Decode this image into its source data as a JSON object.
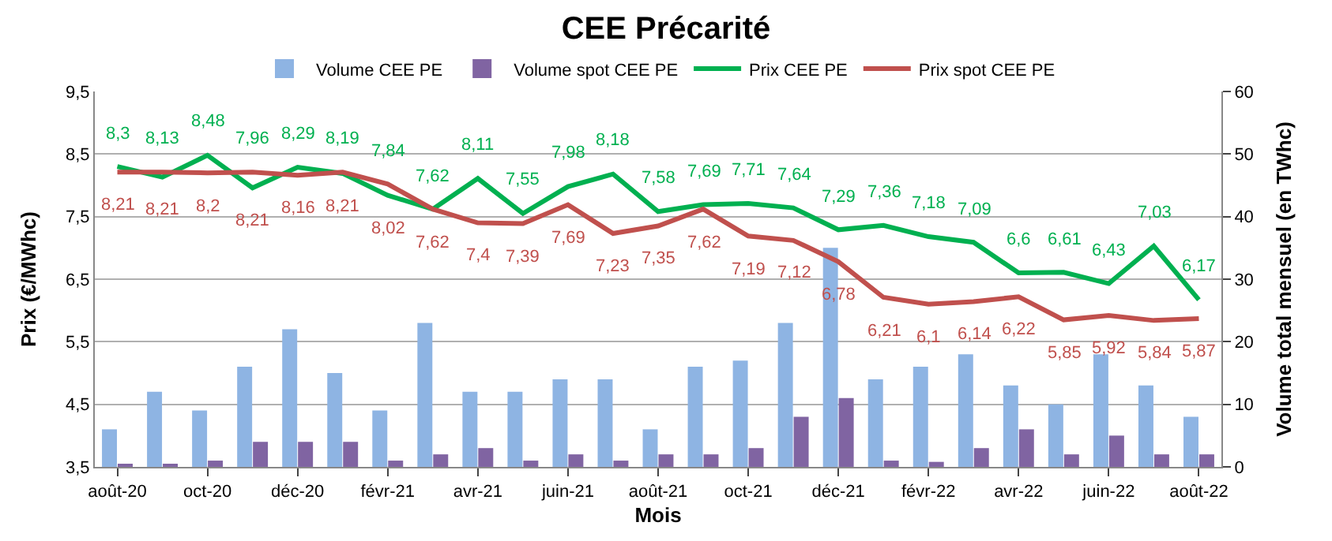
{
  "chart_data": {
    "type": "bar",
    "title": "CEE Précarité",
    "xlabel": "Mois",
    "ylabel": "Prix (€/MWhc)",
    "y2label": "Volume total mensuel (en TWhc)",
    "categories": [
      "août-20",
      null,
      "oct-20",
      null,
      "déc-20",
      null,
      "févr-21",
      null,
      "avr-21",
      null,
      "juin-21",
      null,
      "août-21",
      null,
      "oct-21",
      null,
      "déc-21",
      null,
      "févr-22",
      null,
      "avr-22",
      null,
      "juin-22",
      null,
      "août-22"
    ],
    "ylim": [
      3.5,
      9.5
    ],
    "yticks": [
      {
        "value": 3.5,
        "label": "3,5"
      },
      {
        "value": 4.5,
        "label": "4,5"
      },
      {
        "value": 5.5,
        "label": "5,5"
      },
      {
        "value": 6.5,
        "label": "6,5"
      },
      {
        "value": 7.5,
        "label": "7,5"
      },
      {
        "value": 8.5,
        "label": "8,5"
      },
      {
        "value": 9.5,
        "label": "9,5"
      }
    ],
    "y2lim": [
      0,
      60
    ],
    "y2ticks": [
      0,
      10,
      20,
      30,
      40,
      50,
      60
    ],
    "grid": "y",
    "legend": "top",
    "series": [
      {
        "name": "Volume CEE PE",
        "axis": "y2",
        "color": "#8eb4e3",
        "values": [
          6,
          12,
          9,
          16,
          22,
          15,
          9,
          23,
          12,
          12,
          14,
          14,
          6,
          16,
          17,
          23,
          35,
          14,
          16,
          18,
          13,
          10,
          18,
          13,
          8
        ]
      },
      {
        "name": "Volume spot CEE PE",
        "axis": "y2",
        "color": "#8064a2",
        "values": [
          0.3,
          0.3,
          1,
          4,
          4,
          4,
          1,
          2,
          3,
          1,
          2,
          1,
          2,
          2,
          3,
          8,
          11,
          1,
          0.8,
          3,
          6,
          2,
          5,
          2,
          2
        ]
      },
      {
        "name": "Prix CEE PE",
        "type": "line",
        "color": "#00b050",
        "values": [
          8.3,
          8.13,
          8.48,
          7.96,
          8.29,
          8.19,
          7.84,
          7.62,
          8.11,
          7.55,
          7.98,
          8.18,
          7.58,
          7.69,
          7.71,
          7.64,
          7.29,
          7.36,
          7.18,
          7.09,
          6.6,
          6.61,
          6.43,
          7.03,
          6.17
        ],
        "value_labels": [
          "8,3",
          "8,13",
          "8,48",
          "7,96",
          "8,29",
          "8,19",
          "7,84",
          "7,62",
          "8,11",
          "7,55",
          "7,98",
          "8,18",
          "7,58",
          "7,69",
          "7,71",
          "7,64",
          "7,29",
          "7,36",
          "7,18",
          "7,09",
          "6,6",
          "6,61",
          "6,43",
          "7,03",
          "6,17"
        ]
      },
      {
        "name": "Prix spot CEE PE",
        "type": "line",
        "color": "#c0504d",
        "values": [
          8.21,
          8.21,
          8.2,
          8.21,
          8.16,
          8.21,
          8.02,
          7.62,
          7.4,
          7.39,
          7.69,
          7.23,
          7.35,
          7.62,
          7.19,
          7.12,
          6.78,
          6.21,
          6.1,
          6.14,
          6.22,
          5.85,
          5.92,
          5.84,
          5.87
        ],
        "value_labels": [
          "8,21",
          "8,21",
          "8,2",
          "8,21",
          "8,16",
          "8,21",
          "8,02",
          "7,62",
          "7,4",
          "7,39",
          "7,69",
          "7,23",
          "7,35",
          "7,62",
          "7,19",
          "7,12",
          "6,78",
          "6,21",
          "6,1",
          "6,14",
          "6,22",
          "5,85",
          "5,92",
          "5,84",
          "5,87"
        ]
      }
    ]
  }
}
